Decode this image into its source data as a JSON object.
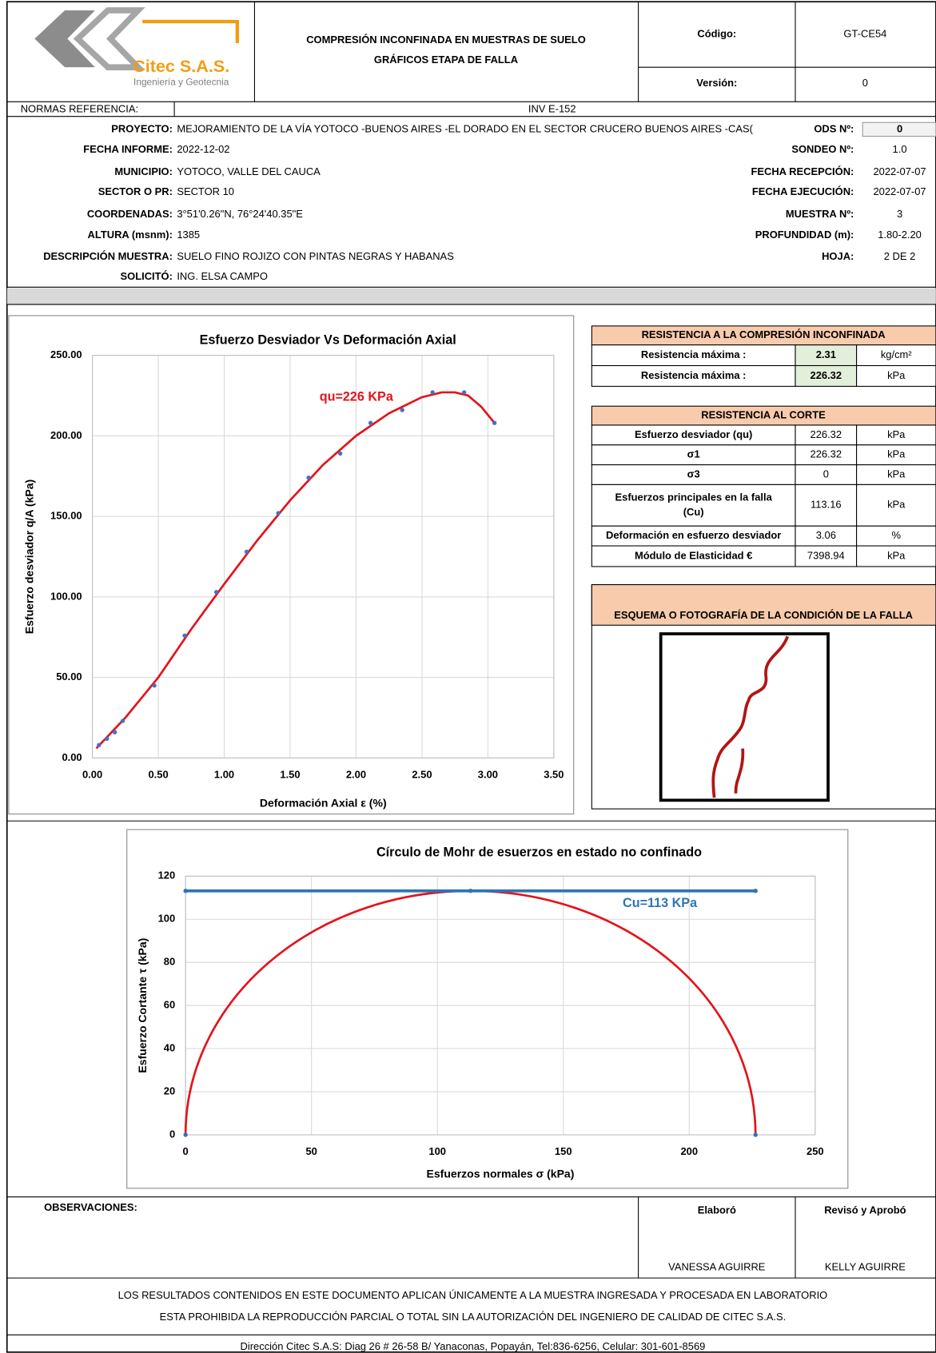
{
  "header": {
    "brand": "Citec S.A.S.",
    "tagline": "Ingeniería y Geotecnia",
    "title_1": "COMPRESIÓN INCONFINADA EN MUESTRAS DE SUELO",
    "title_2": "GRÁFICOS ETAPA DE FALLA",
    "code_label": "Código:",
    "code": "GT-CE54",
    "version_label": "Versión:",
    "version": "0"
  },
  "norms": {
    "label": "NORMAS REFERENCIA:",
    "value": "INV E-152"
  },
  "info_left": [
    {
      "label": "PROYECTO:",
      "value": "MEJORAMIENTO DE LA VÍA YOTOCO -BUENOS AIRES -EL DORADO EN EL SECTOR CRUCERO BUENOS AIRES -CAS("
    },
    {
      "label": "FECHA INFORME:",
      "value": "2022-12-02"
    },
    {
      "label": "MUNICIPIO:",
      "value": "YOTOCO, VALLE DEL CAUCA"
    },
    {
      "label": "SECTOR O PR:",
      "value": "SECTOR 10"
    },
    {
      "label": "COORDENADAS:",
      "value": "3°51'0.26\"N,  76°24'40.35\"E"
    },
    {
      "label": "ALTURA (msnm):",
      "value": "1385"
    },
    {
      "label": "DESCRIPCIÓN MUESTRA:",
      "value": "SUELO FINO ROJIZO CON PINTAS NEGRAS Y HABANAS"
    },
    {
      "label": "SOLICITÓ:",
      "value": "ING. ELSA CAMPO"
    }
  ],
  "info_right": [
    {
      "label": "ODS Nº:",
      "value": "0"
    },
    {
      "label": "SONDEO Nº:",
      "value": "1.0"
    },
    {
      "label": "FECHA RECEPCIÓN:",
      "value": "2022-07-07"
    },
    {
      "label": "FECHA EJECUCIÓN:",
      "value": "2022-07-07"
    },
    {
      "label": "MUESTRA Nº:",
      "value": "3"
    },
    {
      "label": "PROFUNDIDAD (m):",
      "value": "1.80-2.20"
    },
    {
      "label": "HOJA:",
      "value": "2 DE 2"
    }
  ],
  "table_ucs": {
    "title": "RESISTENCIA A LA COMPRESIÓN INCONFINADA",
    "rows": [
      [
        "Resistencia máxima :",
        "2.31",
        "kg/cm²"
      ],
      [
        "Resistencia máxima :",
        "226.32",
        "kPa"
      ]
    ]
  },
  "table_shear": {
    "title": "RESISTENCIA AL CORTE",
    "rows": [
      [
        "Esfuerzo desviador (qu)",
        "226.32",
        "kPa"
      ],
      [
        "σ1",
        "226.32",
        "kPa"
      ],
      [
        "σ3",
        "0",
        "kPa"
      ],
      [
        "Esfuerzos principales en la falla (Cu)",
        "113.16",
        "kPa"
      ],
      [
        "Deformación en esfuerzo desviador",
        "3.06",
        "%"
      ],
      [
        "Módulo de Elasticidad €",
        "7398.94",
        "kPa"
      ]
    ]
  },
  "sketch": {
    "title": "ESQUEMA O FOTOGRAFÍA DE LA CONDICIÓN DE LA FALLA"
  },
  "chart_data": [
    {
      "type": "scatter",
      "title": "Esfuerzo Desviador Vs Deformación Axial",
      "x_label": "Deformación Axial ε (%)",
      "y_label": "Esfuerzo desviador q/A (kPa)",
      "annotation": "qu=226 KPa",
      "xlim": [
        0,
        3.5
      ],
      "ylim": [
        0,
        250
      ],
      "grid": true,
      "xticks": [
        {
          "value": 0,
          "label": "0.00"
        },
        {
          "value": 0.5,
          "label": "0.50"
        },
        {
          "value": 1,
          "label": "1.00"
        },
        {
          "value": 1.5,
          "label": "1.50"
        },
        {
          "value": 2,
          "label": "2.00"
        },
        {
          "value": 2.5,
          "label": "2.50"
        },
        {
          "value": 3,
          "label": "3.00"
        },
        {
          "value": 3.5,
          "label": "3.50"
        }
      ],
      "yticks": [
        {
          "value": 0,
          "label": "0.00"
        },
        {
          "value": 50,
          "label": "50.00"
        },
        {
          "value": 100,
          "label": "100.00"
        },
        {
          "value": 150,
          "label": "150.00"
        },
        {
          "value": 200,
          "label": "200.00"
        },
        {
          "value": 250,
          "label": "250.00"
        }
      ],
      "series": [
        {
          "style": "line",
          "color": "#e3141b",
          "x": [
            0.03,
            0.25,
            0.5,
            0.75,
            1.0,
            1.25,
            1.5,
            1.75,
            2.0,
            2.25,
            2.5,
            2.65,
            2.75,
            2.85,
            2.95,
            3.05
          ],
          "values": [
            6,
            25,
            50,
            80,
            108,
            135,
            160,
            182,
            200,
            214,
            224,
            227,
            227,
            225,
            218,
            208
          ]
        },
        {
          "style": "markers",
          "color": "#4472c4",
          "x": [
            0.05,
            0.11,
            0.17,
            0.23,
            0.47,
            0.7,
            0.94,
            1.17,
            1.41,
            1.64,
            1.88,
            2.11,
            2.35,
            2.58,
            2.82,
            3.05
          ],
          "values": [
            8,
            12,
            16,
            23,
            45,
            76,
            103,
            128,
            152,
            174,
            189,
            208,
            216,
            227,
            227,
            208
          ]
        }
      ]
    },
    {
      "type": "scatter",
      "title": "Círculo de Mohr de esuerzos en estado no confinado",
      "x_label": "Esfuerzos normales σ (kPa)",
      "y_label": "Esfuerzo Cortante τ (kPa)",
      "annotation": "Cu=113 KPa",
      "xlim": [
        0,
        250
      ],
      "ylim": [
        0,
        120
      ],
      "grid": true,
      "xticks": [
        0,
        50,
        100,
        150,
        200,
        250
      ],
      "yticks": [
        0,
        20,
        40,
        60,
        80,
        100,
        120
      ],
      "circle": {
        "center": 113.16,
        "radius": 113.16,
        "color": "#e3141b"
      },
      "series": [
        {
          "style": "line-markers",
          "color": "#2e75b6",
          "x": [
            0,
            113.16,
            226.32
          ],
          "values": [
            113.16,
            113.16,
            113.16
          ]
        },
        {
          "style": "markers",
          "color": "#2e75b6",
          "x": [
            0,
            226.32
          ],
          "values": [
            0,
            0
          ]
        }
      ]
    }
  ],
  "signatures": {
    "observations": "OBSERVACIONES:",
    "made_label": "Elaboró",
    "made_by": "VANESSA AGUIRRE",
    "approved_label": "Revisó y Aprobó",
    "approved_by": "KELLY AGUIRRE"
  },
  "footer": {
    "line_1": "LOS RESULTADOS CONTENIDOS EN ESTE DOCUMENTO APLICAN ÚNICAMENTE A LA MUESTRA INGRESADA Y PROCESADA EN LABORATORIO",
    "line_2": "ESTA PROHIBIDA LA REPRODUCCIÓN PARCIAL O TOTAL SIN LA AUTORIZACIÓN DEL INGENIERO DE CALIDAD DE CITEC S.A.S.",
    "address": "Dirección Citec S.A.S: Diag 26 # 26-58 B/ Yanaconas, Popayán, Tel:836-6256, Celular: 301-601-8569"
  }
}
